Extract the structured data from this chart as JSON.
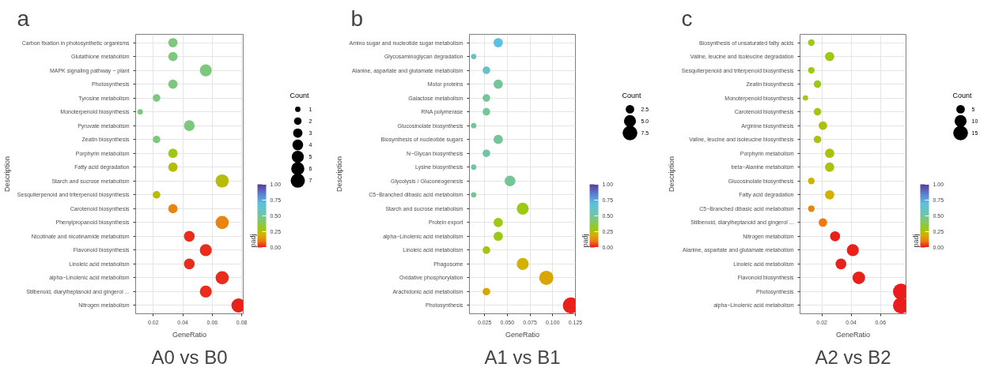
{
  "chart_data": [
    {
      "type": "bubble",
      "orientation": "horizontal",
      "title": "a",
      "annotations": [
        "A0 vs B0"
      ],
      "xlabel": "GeneRatio",
      "ylabel": "Description",
      "categories": [
        "Carbon fixation in photosynthetic organisms",
        "Glutathione metabolism",
        "MAPK signaling pathway − plant",
        "Photosynthesis",
        "Tyrosine metabolism",
        "Monoterpenoid biosynthesis",
        "Pyruvate metabolism",
        "Zeatin biosynthesis",
        "Porphyrin metabolism",
        "Fatty acid degradation",
        "Starch and sucrose metabolism",
        "Sesquiterpenoid and triterpenoid biosynthesis",
        "Carotenoid biosynthesis",
        "Phenylpropanoid biosynthesis",
        "Nicotinate and nicotinamide metabolism",
        "Flavonoid biosynthesis",
        "Linoleic acid metabolism",
        "alpha−Linolenic acid metabolism",
        "Stilbenoid, diarylheptanoid and gingerol ...",
        "Nitrogen metabolism"
      ],
      "values": [
        0.0333,
        0.0333,
        0.0556,
        0.0333,
        0.0222,
        0.0111,
        0.0444,
        0.0222,
        0.0333,
        0.0333,
        0.0667,
        0.0222,
        0.0333,
        0.0667,
        0.0444,
        0.0556,
        0.0444,
        0.0667,
        0.0556,
        0.0778
      ],
      "sizes": [
        3,
        3,
        5,
        3,
        2,
        1,
        4,
        2,
        3,
        3,
        6,
        2,
        3,
        6,
        4,
        5,
        4,
        6,
        5,
        7
      ],
      "size_legend": [
        1,
        2,
        3,
        4,
        5,
        6,
        7
      ],
      "legend_title": "Count",
      "cvalues": [
        0.45,
        0.45,
        0.45,
        0.45,
        0.45,
        0.45,
        0.45,
        0.45,
        0.3,
        0.25,
        0.25,
        0.25,
        0.12,
        0.12,
        0.02,
        0.02,
        0.02,
        0.02,
        0.02,
        0.01
      ],
      "clabel": "padj",
      "clim": [
        0,
        1
      ],
      "cticks": [
        {
          "value": 0,
          "label": "0.00"
        },
        {
          "value": 0.25,
          "label": "0.25"
        },
        {
          "value": 0.5,
          "label": "0.50"
        },
        {
          "value": 0.75,
          "label": "0.75"
        },
        {
          "value": 1,
          "label": "1.00"
        }
      ],
      "xlim": [
        0.008,
        0.081
      ],
      "xticks": [
        0.02,
        0.04,
        0.06,
        0.08
      ],
      "grid": true
    },
    {
      "type": "bubble",
      "orientation": "horizontal",
      "title": "b",
      "annotations": [
        "A1 vs B1"
      ],
      "xlabel": "GeneRatio",
      "ylabel": "Description",
      "categories": [
        "Amino sugar and nucleotide sugar metabolism",
        "Glycosaminoglycan degradation",
        "Alanine, aspartate and glutamate metabolism",
        "Motor proteins",
        "Galactose metabolism",
        "RNA polymerase",
        "Glucosinolate biosynthesis",
        "Biosynthesis of nucleotide sugars",
        "N−Glycan biosynthesis",
        "Lysine biosynthesis",
        "Glycolysis / Gluconeogenesis",
        "C5−Branched dibasic acid metabolism",
        "Starch and sucrose metabolism",
        "Protein export",
        "alpha−Linolenic acid metabolism",
        "Linoleic acid metabolism",
        "Phagosome",
        "Oxidative phosphorylation",
        "Arachidonic acid metabolism",
        "Photosynthesis"
      ],
      "values": [
        0.04,
        0.013,
        0.027,
        0.04,
        0.027,
        0.027,
        0.013,
        0.04,
        0.027,
        0.013,
        0.053,
        0.013,
        0.067,
        0.04,
        0.04,
        0.027,
        0.067,
        0.093,
        0.027,
        0.12
      ],
      "sizes": [
        3,
        1,
        2,
        3,
        2,
        2,
        1,
        3,
        2,
        1,
        4,
        1,
        5,
        3,
        3,
        2,
        5,
        7,
        2,
        9
      ],
      "size_legend": [
        2.5,
        {
          "value": 5,
          "label": "5.0"
        },
        7.5
      ],
      "legend_title": "Count",
      "cvalues": [
        0.7,
        0.6,
        0.6,
        0.5,
        0.5,
        0.5,
        0.5,
        0.5,
        0.52,
        0.52,
        0.5,
        0.5,
        0.3,
        0.3,
        0.3,
        0.28,
        0.2,
        0.18,
        0.18,
        0.01
      ],
      "clabel": "padj",
      "clim": [
        0,
        1
      ],
      "cticks": [
        {
          "value": 0,
          "label": "0.00"
        },
        {
          "value": 0.25,
          "label": "0.25"
        },
        {
          "value": 0.5,
          "label": "0.50"
        },
        {
          "value": 0.75,
          "label": "0.75"
        },
        {
          "value": 1,
          "label": "1.00"
        }
      ],
      "xlim": [
        0.0083,
        0.125
      ],
      "xticks": [
        0.025,
        {
          "value": 0.05,
          "label": "0.050"
        },
        0.075,
        {
          "value": 0.1,
          "label": "0.100"
        },
        0.125
      ],
      "grid": true
    },
    {
      "type": "bubble",
      "orientation": "horizontal",
      "title": "c",
      "annotations": [
        "A2 vs B2"
      ],
      "xlabel": "GeneRatio",
      "ylabel": "Description",
      "categories": [
        "Biosynthesis of unsaturated fatty acids",
        "Valine, leucine and isoleucine degradation",
        "Sesquiterpenoid and triterpenoid biosynthesis",
        "Zeatin biosynthesis",
        "Monoterpenoid biosynthesis",
        "Carotenoid biosynthesis",
        "Arginine biosynthesis",
        "Valine, leucine and isoleucine biosynthesis",
        "Porphyrin metabolism",
        "beta−Alanine metabolism",
        "Glucosinolate biosynthesis",
        "Fatty acid degradation",
        "C5−Branched dibasic acid metabolism",
        "Stilbenoid, diarylheptanoid and gingerol ...",
        "Nitrogen metabolism",
        "Alanine, aspartate and glutamate metabolism",
        "Linoleic acid metabolism",
        "Flavonoid biosynthesis",
        "Photosynthesis",
        "alpha−Linolenic acid metabolism"
      ],
      "values": [
        0.0128,
        0.0253,
        0.0128,
        0.017,
        0.0088,
        0.017,
        0.0207,
        0.017,
        0.0253,
        0.0253,
        0.0128,
        0.0253,
        0.0128,
        0.0207,
        0.029,
        0.0411,
        0.033,
        0.0452,
        0.074,
        0.074
      ],
      "sizes": [
        3,
        6,
        3,
        4,
        2,
        4,
        5,
        4,
        6,
        6,
        3,
        6,
        3,
        5,
        7,
        10,
        8,
        11,
        18,
        18
      ],
      "size_legend": [
        5,
        10,
        15
      ],
      "legend_title": "Count",
      "cvalues": [
        0.3,
        0.3,
        0.3,
        0.3,
        0.28,
        0.28,
        0.27,
        0.27,
        0.27,
        0.27,
        0.22,
        0.2,
        0.12,
        0.1,
        0.01,
        0.01,
        0.01,
        0.01,
        0.005,
        0.005
      ],
      "clabel": "padj",
      "clim": [
        0,
        1
      ],
      "cticks": [
        {
          "value": 0,
          "label": "0.00"
        },
        {
          "value": 0.25,
          "label": "0.25"
        },
        {
          "value": 0.5,
          "label": "0.50"
        },
        {
          "value": 0.75,
          "label": "0.75"
        },
        {
          "value": 1,
          "label": "1.00"
        }
      ],
      "xlim": [
        0.0051,
        0.0774
      ],
      "xticks": [
        0.02,
        0.04,
        0.06
      ],
      "grid": true
    }
  ]
}
